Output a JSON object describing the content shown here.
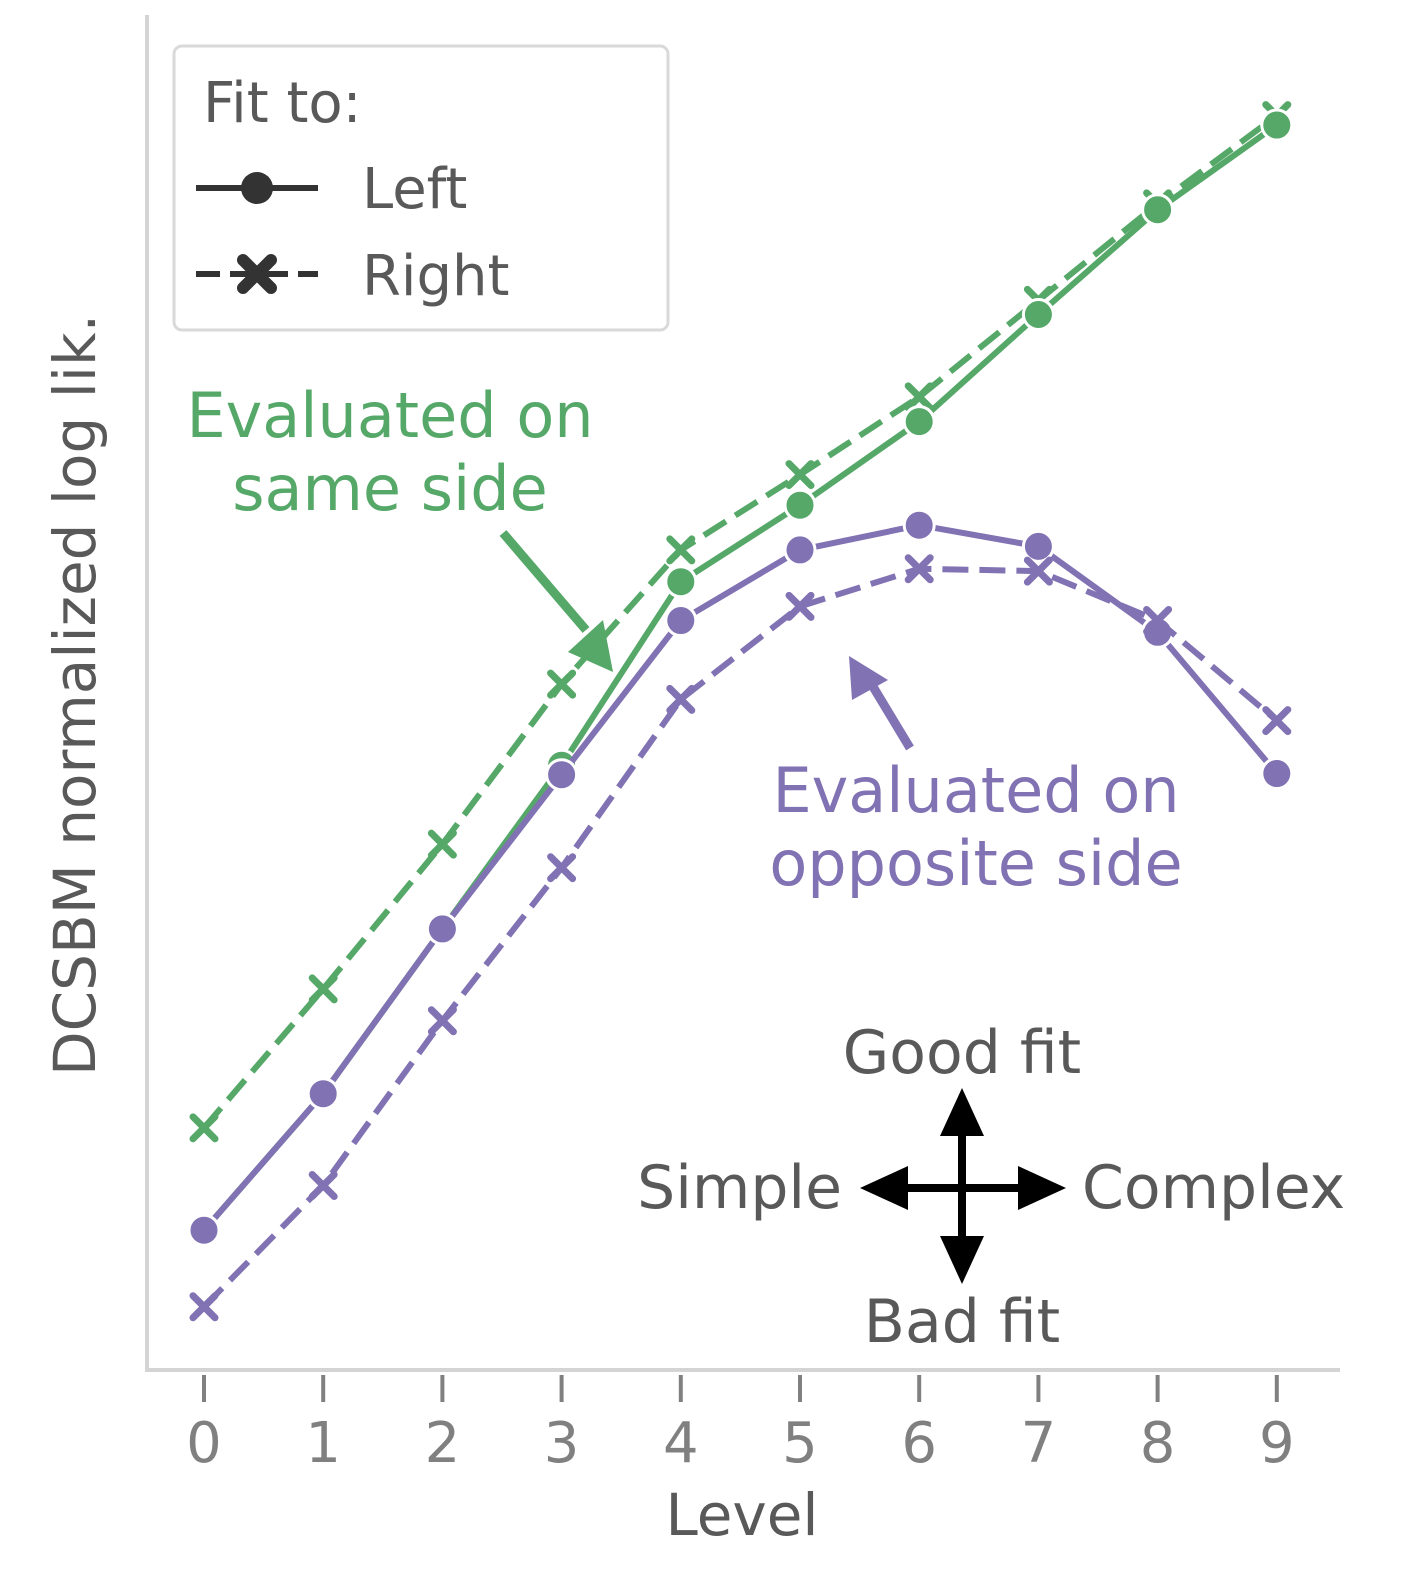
{
  "chart_data": {
    "type": "line",
    "ylabel": "DCSBM normalized log lik.",
    "xlabel": "Level",
    "x": [
      0,
      1,
      2,
      3,
      4,
      5,
      6,
      7,
      8,
      9
    ],
    "x_tick_labels": [
      "0",
      "1",
      "2",
      "3",
      "4",
      "5",
      "6",
      "7",
      "8",
      "9"
    ],
    "xlim": [
      -0.5,
      9.5
    ],
    "ylim": [
      0.0,
      1.0
    ],
    "y_ticks_shown": false,
    "grid": false,
    "legend": {
      "title": "Fit to:",
      "placement": "top-left",
      "entries": [
        {
          "label": "Left",
          "linestyle": "solid",
          "marker": "circle"
        },
        {
          "label": "Right",
          "linestyle": "dashed",
          "marker": "x"
        }
      ]
    },
    "colors": {
      "same_side": "#55a868",
      "opposite_side": "#8172b3",
      "arrow": "#000000"
    },
    "series": [
      {
        "group": "same",
        "fit": "Right",
        "style": "dashed",
        "marker": "x",
        "values": [
          0.114,
          0.232,
          0.355,
          0.491,
          0.605,
          0.669,
          0.735,
          0.817,
          0.899,
          0.974
        ]
      },
      {
        "group": "same",
        "fit": "Left",
        "style": "solid",
        "marker": "circle",
        "values": [
          0.027,
          0.143,
          0.283,
          0.422,
          0.578,
          0.643,
          0.714,
          0.805,
          0.894,
          0.966
        ]
      },
      {
        "group": "opposite",
        "fit": "Left",
        "style": "solid",
        "marker": "circle",
        "values": [
          0.027,
          0.143,
          0.283,
          0.414,
          0.545,
          0.605,
          0.626,
          0.608,
          0.535,
          0.415
        ]
      },
      {
        "group": "opposite",
        "fit": "Right",
        "style": "dashed",
        "marker": "x",
        "values": [
          -0.038,
          0.065,
          0.205,
          0.335,
          0.478,
          0.557,
          0.589,
          0.587,
          0.545,
          0.46
        ]
      }
    ],
    "annotations": {
      "same_side": [
        "Evaluated on",
        "same side"
      ],
      "opposite_side": [
        "Evaluated on",
        "opposite side"
      ]
    },
    "guide": {
      "up": "Good fit",
      "down": "Bad fit",
      "left": "Simple",
      "right": "Complex"
    }
  }
}
